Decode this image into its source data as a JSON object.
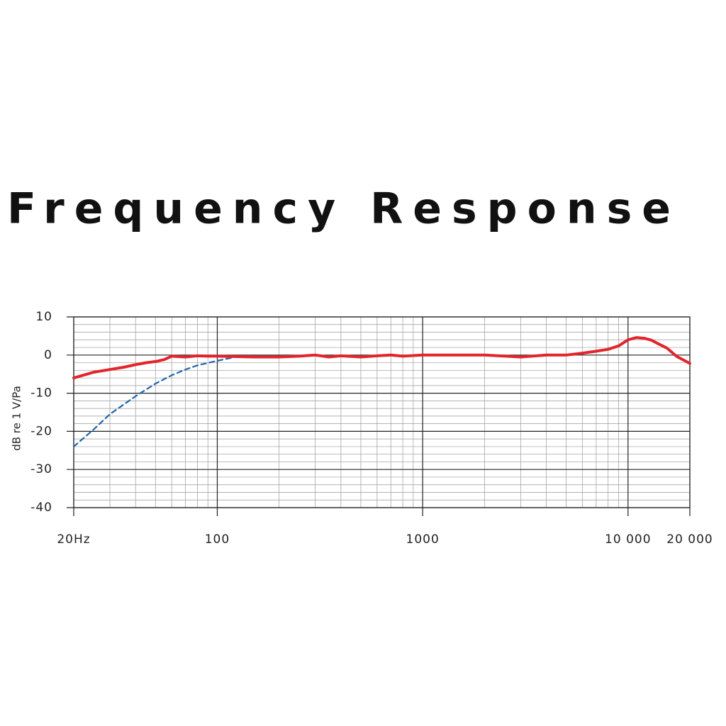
{
  "chart_data": {
    "type": "line",
    "title": "Frequency Response",
    "y_label": "dB re 1 V/Pa",
    "xscale": "log",
    "xlim": [
      20,
      20000
    ],
    "ylim": [
      -40,
      10
    ],
    "xticks": [
      {
        "value": 20,
        "label": "20Hz"
      },
      100,
      1000,
      {
        "value": 10000,
        "label": "10 000"
      },
      {
        "value": 20000,
        "label": "20 000"
      }
    ],
    "yticks": [
      10,
      0,
      -10,
      -20,
      -30,
      -40
    ],
    "xticks_minor": [
      30,
      40,
      50,
      60,
      70,
      80,
      90,
      200,
      300,
      400,
      500,
      600,
      700,
      800,
      900,
      2000,
      3000,
      4000,
      5000,
      6000,
      7000,
      8000,
      9000
    ],
    "yticks_minor": [
      8,
      6,
      4,
      2,
      -2,
      -4,
      -6,
      -8,
      -12,
      -14,
      -16,
      -18,
      -22,
      -24,
      -26,
      -28,
      -32,
      -34,
      -36,
      -38
    ],
    "grid": true,
    "series": [
      {
        "color": "#e3242b",
        "style": "solid",
        "x": [
          20,
          25,
          30,
          35,
          40,
          45,
          50,
          55,
          60,
          70,
          80,
          90,
          100,
          150,
          200,
          250,
          300,
          350,
          400,
          500,
          600,
          700,
          800,
          1000,
          1500,
          2000,
          3000,
          4000,
          5000,
          6000,
          7000,
          8000,
          9000,
          10000,
          11000,
          12000,
          13000,
          14000,
          15500,
          17300,
          18500,
          20000
        ],
        "values": [
          -6,
          -4.5,
          -3.8,
          -3.2,
          -2.5,
          -2,
          -1.7,
          -1.2,
          -0.3,
          -0.5,
          -0.2,
          -0.3,
          -0.3,
          -0.5,
          -0.5,
          -0.3,
          0,
          -0.5,
          -0.2,
          -0.5,
          -0.2,
          0,
          -0.3,
          0,
          0,
          0,
          -0.5,
          0,
          0,
          0.5,
          1,
          1.5,
          2.4,
          4,
          4.6,
          4.4,
          3.9,
          3,
          1.8,
          -0.4,
          -1.2,
          -2.2
        ]
      },
      {
        "color": "#2166ac",
        "style": "dashed",
        "x": [
          20,
          25,
          30,
          40,
          50,
          60,
          70,
          80,
          100,
          120
        ],
        "values": [
          -24,
          -19.5,
          -15.5,
          -10.8,
          -7.5,
          -5.3,
          -3.8,
          -2.7,
          -1.5,
          -0.6
        ]
      }
    ]
  }
}
